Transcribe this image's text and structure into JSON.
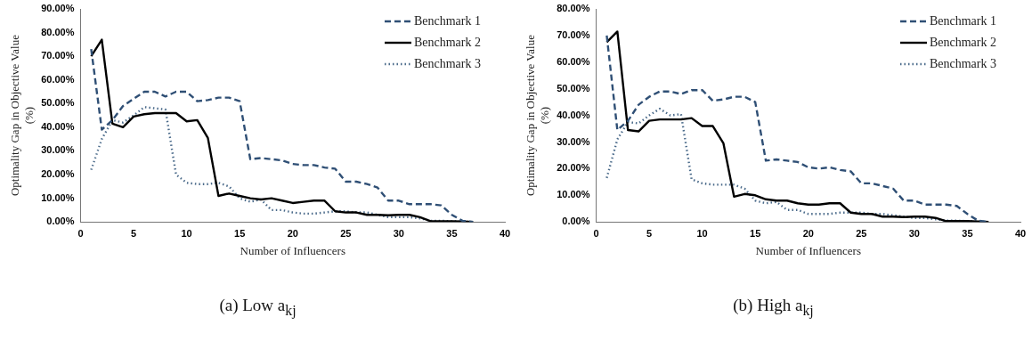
{
  "chart_data": [
    {
      "type": "line",
      "xlabel": "Number of Influencers",
      "ylabel": "Optimality Gap in Objective Value (%)",
      "x": [
        1,
        2,
        3,
        4,
        5,
        6,
        7,
        8,
        9,
        10,
        11,
        12,
        13,
        14,
        15,
        16,
        17,
        18,
        19,
        20,
        21,
        22,
        23,
        24,
        25,
        26,
        27,
        28,
        29,
        30,
        31,
        32,
        33,
        34,
        35,
        36,
        37
      ],
      "xlim": [
        0,
        40
      ],
      "xticks": [
        0,
        5,
        10,
        15,
        20,
        25,
        30,
        35,
        40
      ],
      "ylim": [
        0,
        90
      ],
      "yticks": [
        {
          "value": 0,
          "label": "0.00%"
        },
        {
          "value": 10,
          "label": "10.00%"
        },
        {
          "value": 20,
          "label": "20.00%"
        },
        {
          "value": 30,
          "label": "30.00%"
        },
        {
          "value": 40,
          "label": "40.00%"
        },
        {
          "value": 50,
          "label": "50.00%"
        },
        {
          "value": 60,
          "label": "60.00%"
        },
        {
          "value": 70,
          "label": "70.00%"
        },
        {
          "value": 80,
          "label": "80.00%"
        },
        {
          "value": 90,
          "label": "90.00%"
        }
      ],
      "grid": false,
      "legend": "top right",
      "marker": "none",
      "annotations": [
        "(a) Low a$_{kj}$"
      ],
      "series": [
        {
          "name": "Benchmark 1",
          "color": "#2f4f75",
          "line_style": "dashed",
          "values": [
            73,
            39,
            43,
            49,
            52,
            55,
            55,
            53,
            55,
            55,
            51,
            51.5,
            52.5,
            52.5,
            51,
            26.5,
            27,
            26.5,
            26,
            24.5,
            24,
            24,
            23,
            22.5,
            17,
            17,
            16,
            14.5,
            9,
            9,
            7.5,
            7.5,
            7.5,
            7,
            3,
            0.5,
            0
          ]
        },
        {
          "name": "Benchmark 2",
          "color": "#000000",
          "line_style": "solid",
          "values": [
            70,
            77,
            41.5,
            40,
            44.5,
            45.5,
            46,
            46,
            46,
            42.5,
            43,
            35.5,
            11,
            12,
            11,
            10,
            9.5,
            10,
            9,
            8,
            8.5,
            9,
            9,
            4.5,
            4,
            4,
            3,
            3,
            2.8,
            3,
            3,
            2,
            0.3,
            0.3,
            0.3,
            0.2,
            0
          ]
        },
        {
          "name": "Benchmark 3",
          "color": "#4a6a8a",
          "line_style": "dotted",
          "values": [
            22,
            35,
            43,
            42,
            45,
            48.5,
            48,
            47.5,
            20,
            16.5,
            16,
            16,
            16.5,
            15,
            10,
            8.5,
            9.5,
            5,
            5,
            4,
            3.5,
            3.5,
            4,
            4.5,
            4.5,
            4,
            4,
            3,
            2,
            2,
            2,
            1.5,
            0.5,
            0.5,
            0.3,
            0.2,
            0
          ]
        }
      ]
    },
    {
      "type": "line",
      "xlabel": "Number of Influencers",
      "ylabel": "Optimality Gap in Objective Value (%)",
      "x": [
        1,
        2,
        3,
        4,
        5,
        6,
        7,
        8,
        9,
        10,
        11,
        12,
        13,
        14,
        15,
        16,
        17,
        18,
        19,
        20,
        21,
        22,
        23,
        24,
        25,
        26,
        27,
        28,
        29,
        30,
        31,
        32,
        33,
        34,
        35,
        36,
        37
      ],
      "xlim": [
        0,
        40
      ],
      "xticks": [
        0,
        5,
        10,
        15,
        20,
        25,
        30,
        35,
        40
      ],
      "ylim": [
        0,
        80
      ],
      "yticks": [
        {
          "value": 0,
          "label": "0.00%"
        },
        {
          "value": 10,
          "label": "10.00%"
        },
        {
          "value": 20,
          "label": "20.00%"
        },
        {
          "value": 30,
          "label": "30.00%"
        },
        {
          "value": 40,
          "label": "40.00%"
        },
        {
          "value": 50,
          "label": "50.00%"
        },
        {
          "value": 60,
          "label": "60.00%"
        },
        {
          "value": 70,
          "label": "70.00%"
        },
        {
          "value": 80,
          "label": "80.00%"
        }
      ],
      "grid": false,
      "legend": "top right",
      "marker": "none",
      "annotations": [
        "(b) High a$_{kj}$"
      ],
      "series": [
        {
          "name": "Benchmark 1",
          "color": "#2f4f75",
          "line_style": "dashed",
          "values": [
            70,
            34.5,
            38,
            44,
            47,
            49,
            49,
            48,
            49.5,
            49.5,
            45.5,
            46,
            47,
            47,
            45,
            23,
            23.5,
            23,
            22.5,
            20.5,
            20,
            20.5,
            19.5,
            19,
            14.5,
            14.5,
            13.5,
            12.5,
            8,
            8,
            6.5,
            6.5,
            6.5,
            6,
            3,
            0.5,
            0
          ]
        },
        {
          "name": "Benchmark 2",
          "color": "#000000",
          "line_style": "solid",
          "values": [
            67.5,
            71.5,
            34.5,
            34,
            38,
            38.5,
            38.5,
            38.5,
            39,
            36,
            36,
            29.5,
            9.5,
            10.5,
            10,
            8.5,
            8,
            8,
            7,
            6.5,
            6.5,
            7,
            7,
            3.5,
            3,
            3,
            2,
            2,
            1.8,
            2,
            2,
            1.5,
            0.3,
            0.3,
            0.3,
            0.2,
            0
          ]
        },
        {
          "name": "Benchmark 3",
          "color": "#4a6a8a",
          "line_style": "dotted",
          "values": [
            16.5,
            31,
            37.5,
            37,
            40,
            42.5,
            40,
            40.5,
            16,
            14.5,
            14,
            14,
            14,
            12.5,
            8,
            7,
            7.5,
            4.5,
            4.5,
            3,
            3,
            3,
            3.5,
            3.5,
            3.5,
            3,
            3,
            2.5,
            2,
            1.5,
            1.5,
            1,
            0.5,
            0.5,
            0.3,
            0.2,
            0
          ]
        }
      ]
    }
  ]
}
